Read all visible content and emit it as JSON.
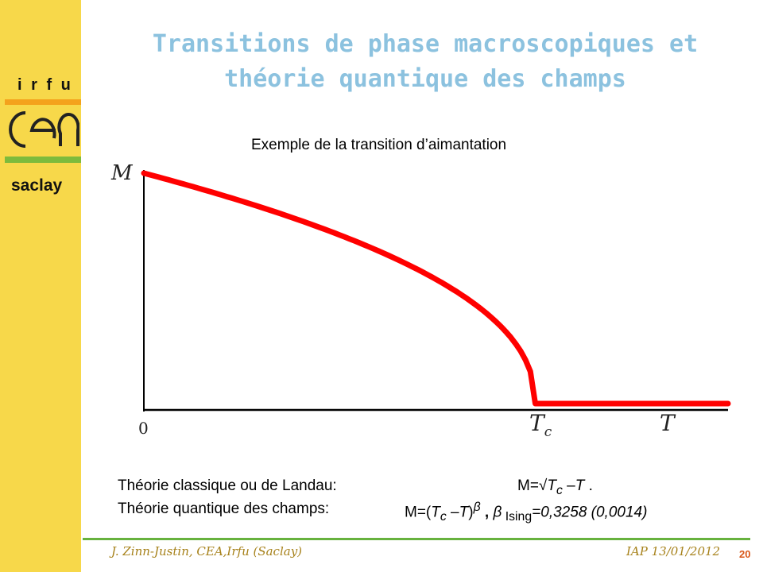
{
  "sidebar": {
    "org": "i r f u",
    "logo_text": "cea",
    "site": "saclay",
    "colors": {
      "background": "#f7d84a",
      "orange_bar": "#f4a21c",
      "green_bar": "#7dbb3c"
    }
  },
  "slide": {
    "title_line1": "Transitions de phase macroscopiques et",
    "title_line2": "théorie quantique des champs",
    "subtitle": "Exemple de la transition d’aimantation",
    "title_color": "#8cc2df"
  },
  "chart_data": {
    "type": "line",
    "title": "Exemple de la transition d’aimantation",
    "xlabel": "T",
    "ylabel": "M",
    "x_ticks": [
      "0",
      "Tc"
    ],
    "series": [
      {
        "color": "#ff0000",
        "description_function": "M = (Tc - T)^beta for T < Tc, 0 for T > Tc"
      }
    ],
    "Tc_fraction": 0.67,
    "x_range": [
      0,
      1.0
    ],
    "y_range": [
      0,
      1.0
    ]
  },
  "theories": {
    "classical_label": "Théorie classique ou de Landau:",
    "classical_eq_prefix": "M=√",
    "classical_eq_var1": "T",
    "classical_eq_sub1": "c",
    "classical_eq_rest": " –",
    "classical_eq_var2": "T",
    "classical_eq_end": " .",
    "quantum_label": "Théorie quantique des champs:",
    "quantum_eq_prefix": "M=(",
    "quantum_eq_var1": "T",
    "quantum_eq_sub1": "c",
    "quantum_eq_mid": " –",
    "quantum_eq_var2": "T",
    "quantum_eq_close": ")",
    "quantum_eq_exp": "β",
    "quantum_eq_sep": " ,  ",
    "quantum_eq_beta": "β",
    "quantum_eq_sub2": " Ising",
    "quantum_eq_value": "=0,3258 (0,0014)"
  },
  "footer": {
    "left": "J. Zinn-Justin, CEA,Irfu (Saclay)",
    "right": "IAP 13/01/2012",
    "page": "20",
    "line_color": "#67b23e"
  }
}
